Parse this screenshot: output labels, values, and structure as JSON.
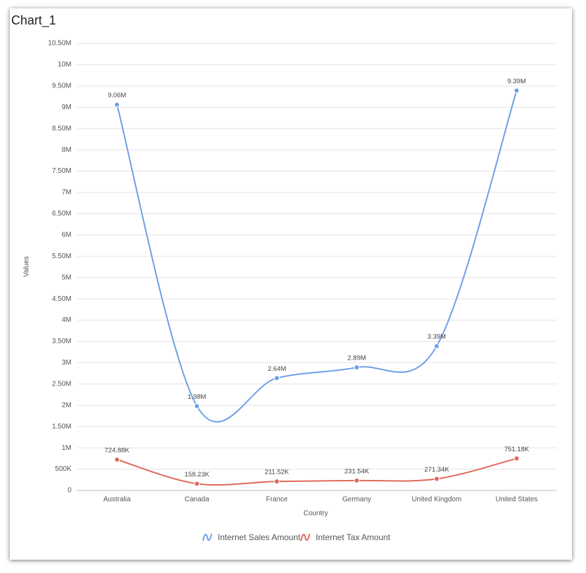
{
  "chart_data": {
    "type": "line",
    "title": "Chart_1",
    "x_label": "Country",
    "y_label": "Values",
    "categories": [
      "Australia",
      "Canada",
      "France",
      "Germany",
      "United Kingdom",
      "United States"
    ],
    "series": [
      {
        "name": "Internet Sales Amount",
        "color": "#6f9fe8",
        "values": [
          9060000,
          1980000,
          2640000,
          2890000,
          3390000,
          9390000
        ],
        "value_labels": [
          "9.06M",
          "1.98M",
          "2.64M",
          "2.89M",
          "3.39M",
          "9.39M"
        ]
      },
      {
        "name": "Internet Tax Amount",
        "color": "#e06a5b",
        "values": [
          724880,
          158230,
          211520,
          231540,
          271340,
          751180
        ],
        "value_labels": [
          "724.88K",
          "158.23K",
          "211.52K",
          "231.54K",
          "271.34K",
          "751.18K"
        ]
      }
    ],
    "ylim": [
      0,
      10500000
    ],
    "yticks": [
      0,
      {
        "value": 500000,
        "label": "500K"
      },
      {
        "value": 1000000,
        "label": "1M"
      },
      {
        "value": 1500000,
        "label": "1.50M"
      },
      {
        "value": 2000000,
        "label": "2M"
      },
      {
        "value": 2500000,
        "label": "2.50M"
      },
      {
        "value": 3000000,
        "label": "3M"
      },
      {
        "value": 3500000,
        "label": "3.50M"
      },
      {
        "value": 4000000,
        "label": "4M"
      },
      {
        "value": 4500000,
        "label": "4.50M"
      },
      {
        "value": 5000000,
        "label": "5M"
      },
      {
        "value": 5500000,
        "label": "5.50M"
      },
      {
        "value": 6000000,
        "label": "6M"
      },
      {
        "value": 6500000,
        "label": "6.50M"
      },
      {
        "value": 7000000,
        "label": "7M"
      },
      {
        "value": 7500000,
        "label": "7.50M"
      },
      {
        "value": 8000000,
        "label": "8M"
      },
      {
        "value": 8500000,
        "label": "8.50M"
      },
      {
        "value": 9000000,
        "label": "9M"
      },
      {
        "value": 9500000,
        "label": "9.50M"
      },
      {
        "value": 10000000,
        "label": "10M"
      },
      {
        "value": 10500000,
        "label": "10.50M"
      }
    ],
    "grid": true
  }
}
